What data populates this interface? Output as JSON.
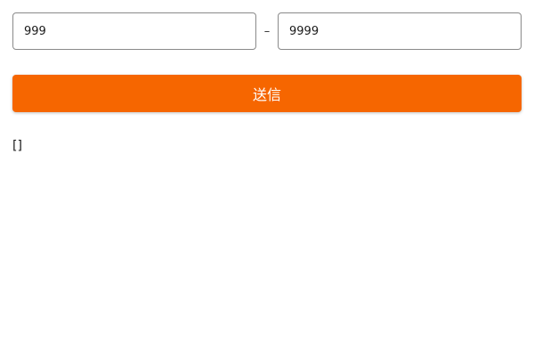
{
  "range": {
    "min_value": "999",
    "separator": "–",
    "max_value": "9999"
  },
  "submit": {
    "label": "送信"
  },
  "output": {
    "text": "[]"
  },
  "colors": {
    "accent": "#f66600",
    "input_border": "#8a8a8a"
  }
}
